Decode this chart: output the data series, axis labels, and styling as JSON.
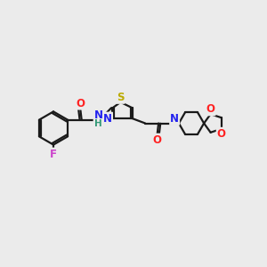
{
  "bg_color": "#ebebeb",
  "bond_color": "#1a1a1a",
  "bond_width": 1.6,
  "atom_colors": {
    "F": "#cc44cc",
    "O": "#ff2222",
    "N": "#2222ee",
    "S": "#bbaa00",
    "H": "#339977",
    "C": "#1a1a1a"
  },
  "font_size": 8.5
}
